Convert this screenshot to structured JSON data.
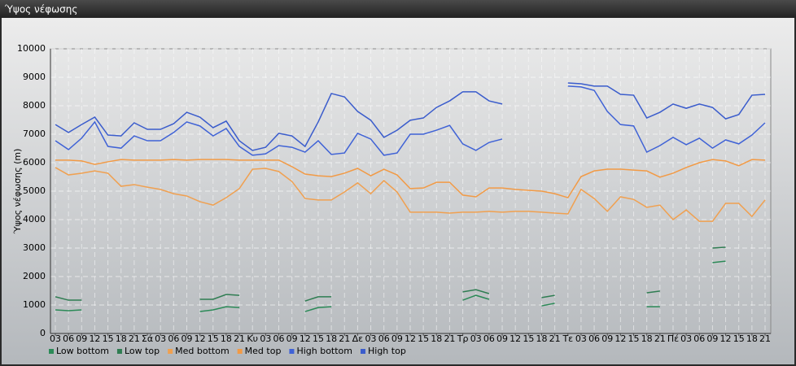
{
  "chart_data": {
    "type": "line",
    "title": "Ύψος νέφωσης",
    "y_label": "Ύψος νέφωσης (m)",
    "categories": [
      "03",
      "06",
      "09",
      "12",
      "15",
      "18",
      "21",
      "Σά",
      "03",
      "06",
      "09",
      "12",
      "15",
      "18",
      "21",
      "Κυ",
      "03",
      "06",
      "09",
      "12",
      "15",
      "18",
      "21",
      "Δε",
      "03",
      "06",
      "09",
      "12",
      "15",
      "18",
      "21",
      "Τρ",
      "03",
      "06",
      "09",
      "12",
      "15",
      "18",
      "21",
      "Τε",
      "03",
      "06",
      "09",
      "12",
      "15",
      "18",
      "21",
      "Πέ",
      "03",
      "06",
      "09",
      "12",
      "15",
      "18",
      "21"
    ],
    "series": [
      {
        "name": "Low bottom",
        "color": "#2b8a57",
        "values": [
          830,
          800,
          830,
          null,
          null,
          null,
          null,
          null,
          null,
          null,
          null,
          770,
          830,
          940,
          910,
          null,
          null,
          null,
          null,
          770,
          910,
          940,
          null,
          null,
          null,
          null,
          null,
          null,
          null,
          null,
          null,
          1170,
          1340,
          1200,
          null,
          null,
          null,
          970,
          1060,
          null,
          null,
          null,
          null,
          null,
          null,
          940,
          940,
          null,
          null,
          null,
          2490,
          2540,
          null,
          null,
          null
        ]
      },
      {
        "name": "Low top",
        "color": "#2f7d52",
        "values": [
          1290,
          1170,
          1170,
          null,
          null,
          null,
          null,
          null,
          null,
          null,
          null,
          1200,
          1200,
          1370,
          1340,
          null,
          null,
          null,
          null,
          1140,
          1290,
          1290,
          null,
          null,
          null,
          null,
          null,
          null,
          null,
          null,
          null,
          1460,
          1540,
          1400,
          null,
          null,
          null,
          1260,
          1340,
          null,
          null,
          null,
          null,
          null,
          null,
          1430,
          1490,
          null,
          null,
          null,
          3000,
          3030,
          null,
          null,
          null
        ]
      },
      {
        "name": "Med bottom",
        "color": "#f0a050",
        "values": [
          5830,
          5570,
          5630,
          5710,
          5630,
          5170,
          5230,
          5140,
          5060,
          4910,
          4830,
          4630,
          4510,
          4770,
          5090,
          5770,
          5800,
          5690,
          5340,
          4740,
          4690,
          4690,
          4970,
          5290,
          4910,
          5370,
          4970,
          4260,
          4260,
          4260,
          4230,
          4260,
          4260,
          4290,
          4260,
          4290,
          4290,
          4260,
          4230,
          4200,
          5060,
          4740,
          4290,
          4800,
          4710,
          4430,
          4510,
          4000,
          4340,
          3940,
          3940,
          4570,
          4570,
          4110,
          4690
        ]
      },
      {
        "name": "Med top",
        "color": "#f29a45",
        "values": [
          6090,
          6090,
          6060,
          5940,
          6030,
          6110,
          6090,
          6090,
          6090,
          6110,
          6090,
          6110,
          6110,
          6110,
          6090,
          6090,
          6090,
          6090,
          5860,
          5600,
          5540,
          5510,
          5630,
          5800,
          5540,
          5770,
          5570,
          5090,
          5110,
          5310,
          5310,
          4860,
          4800,
          5110,
          5110,
          5060,
          5030,
          5000,
          4910,
          4770,
          5510,
          5710,
          5770,
          5770,
          5740,
          5710,
          5490,
          5630,
          5830,
          6000,
          6110,
          6060,
          5890,
          6110,
          6090
        ]
      },
      {
        "name": "High bottom",
        "color": "#3f62d6",
        "values": [
          6770,
          6460,
          6860,
          7430,
          6570,
          6510,
          6940,
          6770,
          6770,
          7060,
          7430,
          7290,
          6940,
          7200,
          6570,
          6260,
          6310,
          6600,
          6540,
          6370,
          6770,
          6290,
          6340,
          7030,
          6830,
          6260,
          6340,
          7000,
          7000,
          7140,
          7310,
          6660,
          6430,
          6710,
          6830,
          null,
          null,
          null,
          null,
          8690,
          8660,
          8540,
          7800,
          7340,
          7290,
          6370,
          6600,
          6890,
          6630,
          6860,
          6510,
          6800,
          6660,
          6970,
          7400
        ]
      },
      {
        "name": "High top",
        "color": "#3a5ccc",
        "values": [
          7340,
          7060,
          7340,
          7600,
          6970,
          6940,
          7400,
          7170,
          7170,
          7370,
          7770,
          7600,
          7230,
          7460,
          6770,
          6430,
          6540,
          7030,
          6940,
          6570,
          7430,
          8430,
          8310,
          7800,
          7490,
          6890,
          7140,
          7490,
          7570,
          7940,
          8170,
          8490,
          8490,
          8170,
          8060,
          null,
          null,
          null,
          null,
          8800,
          8770,
          8690,
          8690,
          8400,
          8370,
          7570,
          7770,
          8060,
          7910,
          8060,
          7940,
          7540,
          7690,
          8370,
          8400
        ]
      }
    ],
    "ylim": [
      0,
      10000
    ],
    "yticks": [
      0,
      1000,
      2000,
      3000,
      4000,
      5000,
      6000,
      7000,
      8000,
      9000,
      10000
    ],
    "grid": true,
    "legend": "bottom"
  }
}
